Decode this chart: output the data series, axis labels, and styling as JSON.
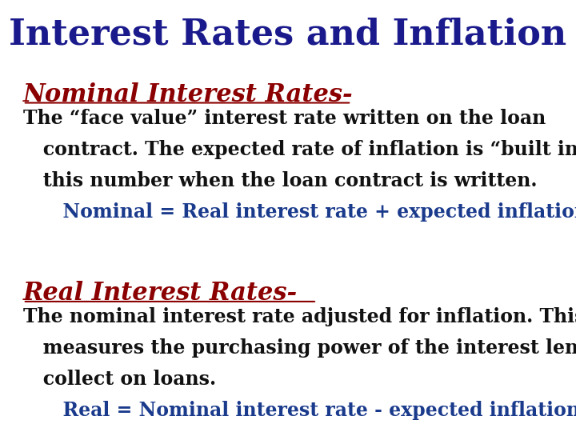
{
  "title": "Interest Rates and Inflation",
  "title_color": "#1a1a8c",
  "title_fontsize": 32,
  "background_color": "#ffffff",
  "section1_heading": "Nominal Interest Rates-",
  "section1_heading_color": "#8b0000",
  "section1_heading_fontsize": 22,
  "section1_body_line1": "The “face value” interest rate written on the loan",
  "section1_body_line2": "   contract. The expected rate of inflation is “built in” to",
  "section1_body_line3": "   this number when the loan contract is written.",
  "section1_body_color": "#111111",
  "section1_body_fontsize": 17,
  "section1_formula": "      Nominal = Real interest rate + expected inflation",
  "section1_formula_color": "#1a3a8c",
  "section1_formula_fontsize": 17,
  "section2_heading": "Real Interest Rates-",
  "section2_heading_color": "#8b0000",
  "section2_heading_fontsize": 22,
  "section2_body_line1": "The nominal interest rate adjusted for inflation. This",
  "section2_body_line2": "   measures the purchasing power of the interest lenders",
  "section2_body_line3": "   collect on loans.",
  "section2_body_color": "#111111",
  "section2_body_fontsize": 17,
  "section2_formula": "      Real = Nominal interest rate - expected inflation",
  "section2_formula_color": "#1a3a8c",
  "section2_formula_fontsize": 17
}
